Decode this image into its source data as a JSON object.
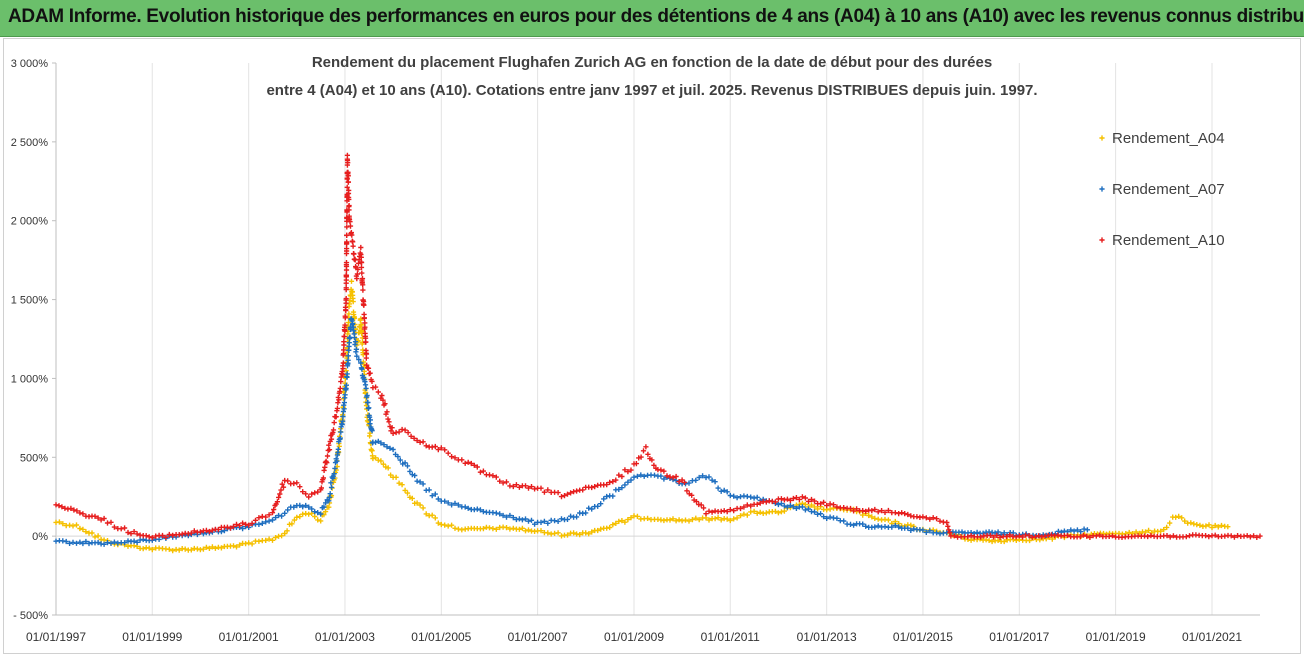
{
  "banner": {
    "title": "ADAM Informe. Evolution historique des performances en euros pour des détentions de 4 ans (A04) à 10 ans (A10) avec les revenus connus distribués",
    "color": "#6bbf6b"
  },
  "chart_data": {
    "type": "scatter",
    "title_line1": "Rendement du placement Flughafen Zurich AG en fonction de la date de début pour des durées",
    "title_line2": "entre 4 (A04) et 10 ans (A10).  Cotations entre janv 1997 et juil. 2025. Revenus DISTRIBUES depuis juin. 1997.",
    "xlabel": "",
    "ylabel": "",
    "y_unit": "%",
    "ylim": [
      -500,
      3000
    ],
    "y_ticks": [
      -500,
      0,
      500,
      1000,
      1500,
      2000,
      2500,
      3000
    ],
    "y_tick_labels": [
      "- 500%",
      "0%",
      "500%",
      "1 000%",
      "1 500%",
      "2 000%",
      "2 500%",
      "3 000%"
    ],
    "xlim": [
      "1997-01-01",
      "2021-12-31"
    ],
    "x_tick_labels": [
      "01/01/1997",
      "01/01/1999",
      "01/01/2001",
      "01/01/2003",
      "01/01/2005",
      "01/01/2007",
      "01/01/2009",
      "01/01/2011",
      "01/01/2013",
      "01/01/2015",
      "01/01/2017",
      "01/01/2019",
      "01/01/2021"
    ],
    "grid": "vertical",
    "legend_position": "right",
    "marker": "+",
    "series": [
      {
        "name": "Rendement_A04",
        "color": "#f5c000",
        "points": [
          [
            "1997-01-01",
            90
          ],
          [
            "1997-07-01",
            60
          ],
          [
            "1998-01-01",
            -30
          ],
          [
            "1998-07-01",
            -60
          ],
          [
            "1999-01-01",
            -80
          ],
          [
            "1999-07-01",
            -85
          ],
          [
            "2000-01-01",
            -80
          ],
          [
            "2000-07-01",
            -70
          ],
          [
            "2001-01-01",
            -50
          ],
          [
            "2001-07-01",
            -20
          ],
          [
            "2001-10-01",
            20
          ],
          [
            "2002-01-01",
            120
          ],
          [
            "2002-04-01",
            150
          ],
          [
            "2002-07-01",
            100
          ],
          [
            "2002-09-01",
            200
          ],
          [
            "2002-11-01",
            450
          ],
          [
            "2002-12-15",
            800
          ],
          [
            "2003-01-15",
            1100
          ],
          [
            "2003-02-01",
            1450
          ],
          [
            "2003-02-20",
            1580
          ],
          [
            "2003-04-01",
            1200
          ],
          [
            "2003-05-01",
            1380
          ],
          [
            "2003-06-15",
            800
          ],
          [
            "2003-08-01",
            500
          ],
          [
            "2003-10-01",
            480
          ],
          [
            "2004-01-01",
            380
          ],
          [
            "2004-04-01",
            300
          ],
          [
            "2004-07-01",
            200
          ],
          [
            "2005-01-01",
            80
          ],
          [
            "2005-07-01",
            40
          ],
          [
            "2006-01-01",
            50
          ],
          [
            "2006-07-01",
            50
          ],
          [
            "2007-01-01",
            30
          ],
          [
            "2007-07-01",
            10
          ],
          [
            "2008-01-01",
            20
          ],
          [
            "2008-07-01",
            60
          ],
          [
            "2009-01-01",
            120
          ],
          [
            "2009-07-01",
            110
          ],
          [
            "2010-01-01",
            100
          ],
          [
            "2010-07-01",
            110
          ],
          [
            "2011-01-01",
            110
          ],
          [
            "2011-07-01",
            150
          ],
          [
            "2012-01-01",
            150
          ],
          [
            "2012-07-01",
            200
          ],
          [
            "2013-01-01",
            170
          ],
          [
            "2013-07-01",
            170
          ],
          [
            "2014-01-01",
            110
          ],
          [
            "2014-07-01",
            80
          ],
          [
            "2015-01-01",
            40
          ],
          [
            "2015-07-01",
            20
          ],
          [
            "2016-01-01",
            -20
          ],
          [
            "2016-07-01",
            -30
          ],
          [
            "2017-01-01",
            -20
          ],
          [
            "2017-07-01",
            -20
          ],
          [
            "2018-01-01",
            0
          ],
          [
            "2018-07-01",
            10
          ],
          [
            "2019-01-01",
            20
          ],
          [
            "2019-07-01",
            20
          ],
          [
            "2020-01-01",
            40
          ],
          [
            "2020-04-01",
            130
          ],
          [
            "2020-07-01",
            80
          ],
          [
            "2021-01-01",
            60
          ],
          [
            "2021-05-01",
            60
          ]
        ]
      },
      {
        "name": "Rendement_A07",
        "color": "#1f6fc0",
        "points": [
          [
            "1997-01-01",
            -35
          ],
          [
            "1997-07-01",
            -40
          ],
          [
            "1998-01-01",
            -45
          ],
          [
            "1998-07-01",
            -40
          ],
          [
            "1999-01-01",
            -20
          ],
          [
            "1999-07-01",
            0
          ],
          [
            "2000-01-01",
            20
          ],
          [
            "2000-07-01",
            40
          ],
          [
            "2001-01-01",
            60
          ],
          [
            "2001-07-01",
            100
          ],
          [
            "2001-10-01",
            150
          ],
          [
            "2002-01-01",
            200
          ],
          [
            "2002-04-01",
            180
          ],
          [
            "2002-07-01",
            150
          ],
          [
            "2002-09-01",
            250
          ],
          [
            "2002-11-01",
            500
          ],
          [
            "2002-12-15",
            750
          ],
          [
            "2003-01-15",
            1000
          ],
          [
            "2003-02-01",
            1200
          ],
          [
            "2003-02-20",
            1400
          ],
          [
            "2003-04-01",
            1150
          ],
          [
            "2003-05-01",
            1100
          ],
          [
            "2003-06-15",
            900
          ],
          [
            "2003-08-01",
            600
          ],
          [
            "2003-10-01",
            600
          ],
          [
            "2004-01-01",
            550
          ],
          [
            "2004-04-01",
            450
          ],
          [
            "2004-07-01",
            350
          ],
          [
            "2005-01-01",
            220
          ],
          [
            "2005-07-01",
            180
          ],
          [
            "2006-01-01",
            150
          ],
          [
            "2006-07-01",
            120
          ],
          [
            "2007-01-01",
            80
          ],
          [
            "2007-07-01",
            100
          ],
          [
            "2008-01-01",
            150
          ],
          [
            "2008-07-01",
            250
          ],
          [
            "2009-01-01",
            380
          ],
          [
            "2009-07-01",
            380
          ],
          [
            "2010-01-01",
            330
          ],
          [
            "2010-07-01",
            380
          ],
          [
            "2011-01-01",
            250
          ],
          [
            "2011-07-01",
            250
          ],
          [
            "2012-01-01",
            200
          ],
          [
            "2012-07-01",
            180
          ],
          [
            "2013-01-01",
            120
          ],
          [
            "2013-07-01",
            80
          ],
          [
            "2014-01-01",
            60
          ],
          [
            "2014-07-01",
            60
          ],
          [
            "2015-01-01",
            30
          ],
          [
            "2015-07-01",
            20
          ],
          [
            "2016-01-01",
            20
          ],
          [
            "2016-07-01",
            20
          ],
          [
            "2017-01-01",
            10
          ],
          [
            "2017-07-01",
            10
          ],
          [
            "2018-01-01",
            30
          ],
          [
            "2018-06-01",
            40
          ]
        ]
      },
      {
        "name": "Rendement_A10",
        "color": "#e61e1e",
        "points": [
          [
            "1997-01-01",
            200
          ],
          [
            "1997-04-01",
            180
          ],
          [
            "1997-07-01",
            150
          ],
          [
            "1998-01-01",
            100
          ],
          [
            "1998-07-01",
            30
          ],
          [
            "1999-01-01",
            -10
          ],
          [
            "1999-07-01",
            10
          ],
          [
            "2000-01-01",
            30
          ],
          [
            "2000-07-01",
            50
          ],
          [
            "2001-01-01",
            80
          ],
          [
            "2001-07-01",
            150
          ],
          [
            "2001-10-01",
            350
          ],
          [
            "2002-01-01",
            330
          ],
          [
            "2002-04-01",
            250
          ],
          [
            "2002-07-01",
            300
          ],
          [
            "2002-09-01",
            550
          ],
          [
            "2002-11-01",
            800
          ],
          [
            "2002-12-15",
            1050
          ],
          [
            "2003-01-10",
            1500
          ],
          [
            "2003-01-20",
            2400
          ],
          [
            "2003-02-05",
            2000
          ],
          [
            "2003-03-01",
            1850
          ],
          [
            "2003-04-01",
            1650
          ],
          [
            "2003-05-01",
            1800
          ],
          [
            "2003-06-15",
            1100
          ],
          [
            "2003-08-01",
            950
          ],
          [
            "2003-10-01",
            900
          ],
          [
            "2004-01-01",
            650
          ],
          [
            "2004-04-01",
            680
          ],
          [
            "2004-07-01",
            600
          ],
          [
            "2005-01-01",
            550
          ],
          [
            "2005-07-01",
            470
          ],
          [
            "2006-01-01",
            380
          ],
          [
            "2006-07-01",
            320
          ],
          [
            "2007-01-01",
            300
          ],
          [
            "2007-07-01",
            260
          ],
          [
            "2008-01-01",
            300
          ],
          [
            "2008-07-01",
            330
          ],
          [
            "2009-01-01",
            450
          ],
          [
            "2009-04-01",
            550
          ],
          [
            "2009-07-01",
            420
          ],
          [
            "2010-01-01",
            350
          ],
          [
            "2010-07-01",
            150
          ],
          [
            "2011-01-01",
            160
          ],
          [
            "2011-07-01",
            200
          ],
          [
            "2012-01-01",
            230
          ],
          [
            "2012-07-01",
            240
          ],
          [
            "2013-01-01",
            200
          ],
          [
            "2013-07-01",
            170
          ],
          [
            "2014-01-01",
            160
          ],
          [
            "2014-07-01",
            150
          ],
          [
            "2015-01-01",
            120
          ],
          [
            "2015-07-01",
            90
          ],
          [
            "2015-08-01",
            0
          ],
          [
            "2016-01-01",
            0
          ],
          [
            "2017-01-01",
            0
          ],
          [
            "2018-01-01",
            0
          ],
          [
            "2019-01-01",
            0
          ],
          [
            "2020-01-01",
            0
          ],
          [
            "2021-01-01",
            0
          ],
          [
            "2021-12-31",
            0
          ]
        ]
      }
    ]
  }
}
